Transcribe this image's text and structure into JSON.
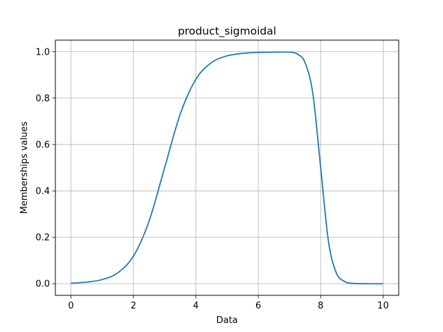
{
  "chart_data": {
    "type": "line",
    "title": "product_sigmoidal",
    "xlabel": "Data",
    "ylabel": "Memberships values",
    "xlim": [
      -0.5,
      10.5
    ],
    "ylim": [
      -0.05,
      1.05
    ],
    "xticks": [
      0,
      2,
      4,
      6,
      8,
      10
    ],
    "yticks": [
      0.0,
      0.2,
      0.4,
      0.6,
      0.8,
      1.0
    ],
    "xtick_labels": [
      "0",
      "2",
      "4",
      "6",
      "8",
      "10"
    ],
    "ytick_labels": [
      "0.0",
      "0.2",
      "0.4",
      "0.6",
      "0.8",
      "1.0"
    ],
    "grid": true,
    "series": [
      {
        "color": "#1f77b4",
        "x": [
          0,
          0.5,
          1,
          1.5,
          2,
          2.5,
          3,
          3.5,
          4,
          4.5,
          5,
          5.5,
          6,
          6.5,
          7,
          7.25,
          7.5,
          7.75,
          8,
          8.25,
          8.5,
          8.75,
          9,
          9.5,
          10
        ],
        "y": [
          0.002,
          0.007,
          0.018,
          0.047,
          0.119,
          0.269,
          0.5,
          0.731,
          0.881,
          0.953,
          0.982,
          0.993,
          0.997,
          0.998,
          0.998,
          0.99,
          0.953,
          0.818,
          0.5,
          0.182,
          0.047,
          0.011,
          0.002,
          0.0,
          0.0
        ]
      }
    ]
  }
}
